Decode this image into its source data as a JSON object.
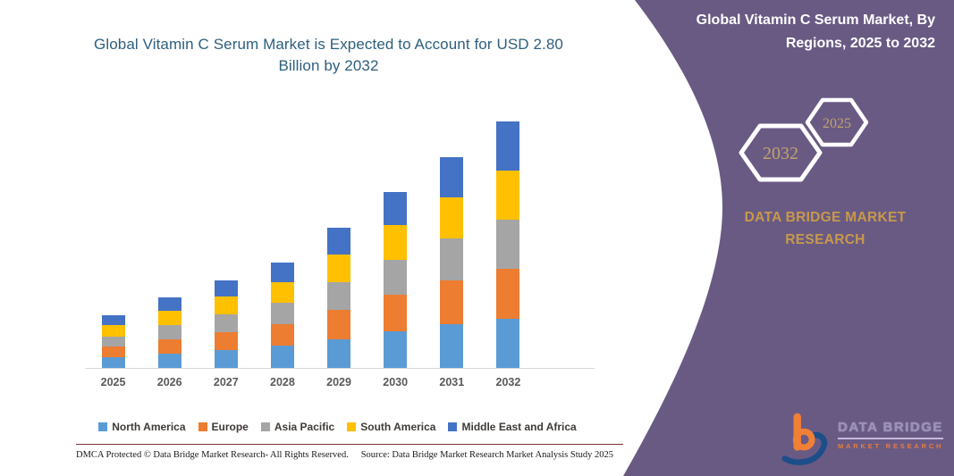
{
  "main": {
    "title": "Global Vitamin C Serum Market is Expected to Account for USD 2.80 Billion by 2032"
  },
  "chart_data": {
    "type": "bar",
    "stacked": true,
    "title": "Global Vitamin C Serum Market is Expected to Account for USD 2.80 Billion by 2032",
    "categories": [
      "2025",
      "2026",
      "2027",
      "2028",
      "2029",
      "2030",
      "2031",
      "2032"
    ],
    "series": [
      {
        "name": "North America",
        "color": "#5B9BD5",
        "values": [
          0.12,
          0.16,
          0.2,
          0.25,
          0.33,
          0.42,
          0.5,
          0.56
        ]
      },
      {
        "name": "Europe",
        "color": "#ED7D31",
        "values": [
          0.12,
          0.17,
          0.21,
          0.25,
          0.33,
          0.41,
          0.49,
          0.57
        ]
      },
      {
        "name": "Asia Pacific",
        "color": "#A5A5A5",
        "values": [
          0.12,
          0.16,
          0.2,
          0.24,
          0.32,
          0.4,
          0.48,
          0.56
        ]
      },
      {
        "name": "South America",
        "color": "#FFC000",
        "values": [
          0.13,
          0.16,
          0.2,
          0.24,
          0.31,
          0.39,
          0.47,
          0.55
        ]
      },
      {
        "name": "Middle East and Africa",
        "color": "#4472C4",
        "values": [
          0.11,
          0.15,
          0.19,
          0.22,
          0.31,
          0.38,
          0.46,
          0.56
        ]
      }
    ],
    "totals_estimated": [
      0.6,
      0.8,
      1.0,
      1.2,
      1.6,
      2.0,
      2.4,
      2.8
    ],
    "xlabel": "",
    "ylabel": "",
    "ylim": [
      0,
      2.84
    ],
    "grid": false,
    "legend_position": "bottom"
  },
  "footer": {
    "dmca": "DMCA Protected © Data Bridge Market Research-  All Rights Reserved.",
    "source": "Source: Data Bridge Market Research  Market Analysis Study 2025"
  },
  "sidebar": {
    "title": "Global Vitamin C Serum Market, By Regions, 2025 to 2032",
    "hexagons": [
      {
        "label": "2032"
      },
      {
        "label": "2025"
      }
    ],
    "brand_line1": "DATA BRIDGE MARKET",
    "brand_line2": "RESEARCH",
    "logo": {
      "line1": "DATA BRIDGE",
      "line2": "MARKET RESEARCH"
    }
  },
  "colors": {
    "panel_purple": "#695a84",
    "brand_gold": "#c7994a",
    "hex_year_gold": "#c3a269",
    "main_title_blue": "#2d5f7d",
    "legend_text": "#403a38",
    "axis_line": "#d9d9d9",
    "divider_maroon": "#7e3030",
    "logo_orange": "#f08036",
    "logo_navy": "#1d4e89",
    "logo_lavender": "#9b8fba"
  }
}
